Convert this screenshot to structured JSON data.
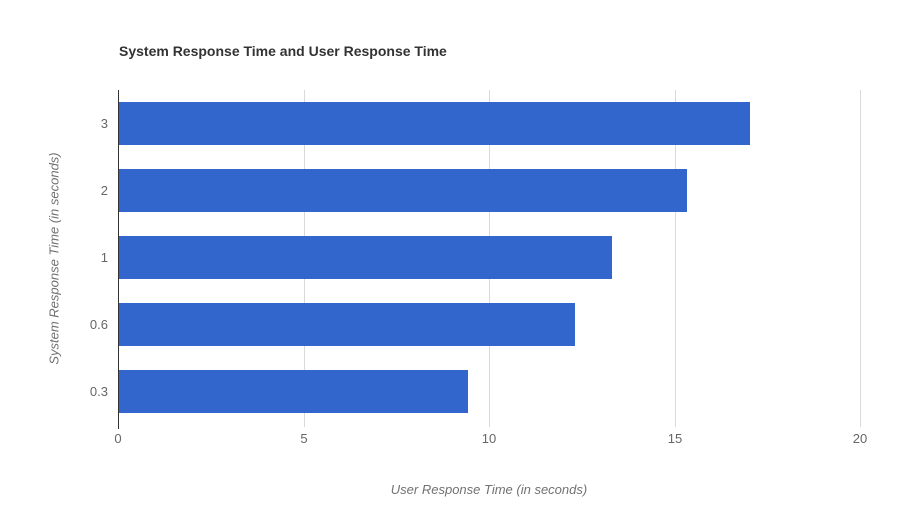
{
  "chart_data": {
    "type": "bar",
    "orientation": "horizontal",
    "title": "System Response Time and User Response Time",
    "xlabel": "User Response Time (in seconds)",
    "ylabel": "System Response Time (in seconds)",
    "categories": [
      "3",
      "2",
      "1",
      "0.6",
      "0.3"
    ],
    "values": [
      17,
      15.3,
      13.3,
      12.3,
      9.4
    ],
    "xlim": [
      0,
      20
    ],
    "xticks": [
      0,
      5,
      10,
      15,
      20
    ],
    "grid": true,
    "legend_position": "none",
    "colors": {
      "bar": "#3366cc",
      "gridline": "#d9d9d9",
      "baseline": "#333333",
      "title": "#333333",
      "tick_label": "#666666",
      "axis_title": "#717171",
      "background": "#ffffff"
    }
  }
}
